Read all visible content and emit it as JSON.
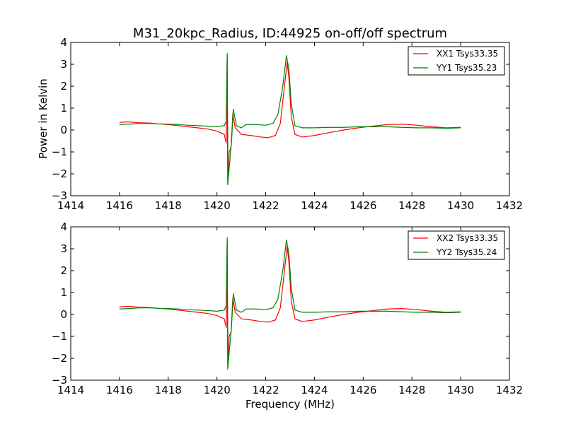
{
  "colors": {
    "xx": "#ff0000",
    "yy": "#008000"
  },
  "chart_data": [
    {
      "type": "line",
      "title": "M31_20kpc_Radius, ID:44925 on-off/off spectrum",
      "xlabel": "",
      "ylabel": "Power in Kelvin",
      "xlim": [
        1414,
        1432
      ],
      "ylim": [
        -3,
        4
      ],
      "xticks": [
        "1414",
        "1416",
        "1418",
        "1420",
        "1422",
        "1424",
        "1426",
        "1428",
        "1430",
        "1432"
      ],
      "yticks": [
        "−3",
        "−2",
        "−1",
        "0",
        "1",
        "2",
        "3",
        "4"
      ],
      "grid": false,
      "legend": "top-right",
      "series": [
        {
          "name": "XX1 Tsys33.35",
          "color": "#ff0000",
          "points": [
            [
              1416.0,
              0.35
            ],
            [
              1416.4,
              0.37
            ],
            [
              1416.8,
              0.33
            ],
            [
              1417.2,
              0.32
            ],
            [
              1417.6,
              0.28
            ],
            [
              1418.0,
              0.25
            ],
            [
              1418.4,
              0.2
            ],
            [
              1418.8,
              0.15
            ],
            [
              1419.2,
              0.1
            ],
            [
              1419.6,
              0.05
            ],
            [
              1420.0,
              -0.05
            ],
            [
              1420.3,
              -0.2
            ],
            [
              1420.38,
              -0.6
            ],
            [
              1420.42,
              3.4
            ],
            [
              1420.44,
              -2.5
            ],
            [
              1420.5,
              -1.0
            ],
            [
              1420.58,
              -0.8
            ],
            [
              1420.65,
              0.75
            ],
            [
              1420.75,
              0.1
            ],
            [
              1421.0,
              -0.2
            ],
            [
              1421.4,
              -0.25
            ],
            [
              1421.8,
              -0.32
            ],
            [
              1422.1,
              -0.35
            ],
            [
              1422.4,
              -0.25
            ],
            [
              1422.6,
              0.3
            ],
            [
              1422.75,
              1.8
            ],
            [
              1422.88,
              3.1
            ],
            [
              1422.95,
              2.4
            ],
            [
              1423.05,
              0.6
            ],
            [
              1423.2,
              -0.2
            ],
            [
              1423.5,
              -0.32
            ],
            [
              1424.0,
              -0.25
            ],
            [
              1424.6,
              -0.12
            ],
            [
              1425.2,
              0.0
            ],
            [
              1425.8,
              0.1
            ],
            [
              1426.4,
              0.18
            ],
            [
              1427.0,
              0.25
            ],
            [
              1427.6,
              0.27
            ],
            [
              1428.2,
              0.22
            ],
            [
              1428.8,
              0.15
            ],
            [
              1429.4,
              0.1
            ],
            [
              1430.0,
              0.12
            ]
          ]
        },
        {
          "name": "YY1 Tsys35.23",
          "color": "#008000",
          "points": [
            [
              1416.0,
              0.25
            ],
            [
              1416.4,
              0.27
            ],
            [
              1416.8,
              0.3
            ],
            [
              1417.2,
              0.3
            ],
            [
              1417.6,
              0.28
            ],
            [
              1418.0,
              0.27
            ],
            [
              1418.4,
              0.25
            ],
            [
              1418.8,
              0.22
            ],
            [
              1419.2,
              0.2
            ],
            [
              1419.6,
              0.18
            ],
            [
              1420.0,
              0.15
            ],
            [
              1420.3,
              0.2
            ],
            [
              1420.38,
              0.4
            ],
            [
              1420.42,
              3.5
            ],
            [
              1420.45,
              -2.4
            ],
            [
              1420.52,
              -1.5
            ],
            [
              1420.6,
              -0.5
            ],
            [
              1420.67,
              0.95
            ],
            [
              1420.8,
              0.2
            ],
            [
              1421.0,
              0.1
            ],
            [
              1421.2,
              0.25
            ],
            [
              1421.6,
              0.25
            ],
            [
              1422.0,
              0.22
            ],
            [
              1422.3,
              0.3
            ],
            [
              1422.5,
              0.7
            ],
            [
              1422.7,
              2.0
            ],
            [
              1422.85,
              3.4
            ],
            [
              1422.95,
              2.8
            ],
            [
              1423.05,
              1.2
            ],
            [
              1423.2,
              0.2
            ],
            [
              1423.5,
              0.1
            ],
            [
              1424.0,
              0.1
            ],
            [
              1424.6,
              0.12
            ],
            [
              1425.2,
              0.12
            ],
            [
              1425.8,
              0.15
            ],
            [
              1426.4,
              0.15
            ],
            [
              1427.0,
              0.15
            ],
            [
              1427.6,
              0.12
            ],
            [
              1428.2,
              0.1
            ],
            [
              1428.8,
              0.1
            ],
            [
              1429.4,
              0.08
            ],
            [
              1430.0,
              0.1
            ]
          ]
        }
      ]
    },
    {
      "type": "line",
      "title": "",
      "xlabel": "Frequency (MHz)",
      "ylabel": "",
      "xlim": [
        1414,
        1432
      ],
      "ylim": [
        -3,
        4
      ],
      "xticks": [
        "1414",
        "1416",
        "1418",
        "1420",
        "1422",
        "1424",
        "1426",
        "1428",
        "1430",
        "1432"
      ],
      "yticks": [
        "−3",
        "−2",
        "−1",
        "0",
        "1",
        "2",
        "3",
        "4"
      ],
      "grid": false,
      "legend": "top-right",
      "series": [
        {
          "name": "XX2 Tsys33.35",
          "color": "#ff0000",
          "points": [
            [
              1416.0,
              0.35
            ],
            [
              1416.4,
              0.37
            ],
            [
              1416.8,
              0.33
            ],
            [
              1417.2,
              0.32
            ],
            [
              1417.6,
              0.28
            ],
            [
              1418.0,
              0.25
            ],
            [
              1418.4,
              0.2
            ],
            [
              1418.8,
              0.15
            ],
            [
              1419.2,
              0.1
            ],
            [
              1419.6,
              0.05
            ],
            [
              1420.0,
              -0.05
            ],
            [
              1420.3,
              -0.2
            ],
            [
              1420.38,
              -0.6
            ],
            [
              1420.42,
              3.4
            ],
            [
              1420.44,
              -2.5
            ],
            [
              1420.5,
              -1.0
            ],
            [
              1420.58,
              -0.8
            ],
            [
              1420.65,
              0.75
            ],
            [
              1420.75,
              0.1
            ],
            [
              1421.0,
              -0.2
            ],
            [
              1421.4,
              -0.25
            ],
            [
              1421.8,
              -0.32
            ],
            [
              1422.1,
              -0.35
            ],
            [
              1422.4,
              -0.25
            ],
            [
              1422.6,
              0.3
            ],
            [
              1422.75,
              1.8
            ],
            [
              1422.88,
              3.1
            ],
            [
              1422.95,
              2.4
            ],
            [
              1423.05,
              0.6
            ],
            [
              1423.2,
              -0.2
            ],
            [
              1423.5,
              -0.32
            ],
            [
              1424.0,
              -0.25
            ],
            [
              1424.6,
              -0.12
            ],
            [
              1425.2,
              0.0
            ],
            [
              1425.8,
              0.1
            ],
            [
              1426.4,
              0.18
            ],
            [
              1427.0,
              0.25
            ],
            [
              1427.6,
              0.27
            ],
            [
              1428.2,
              0.22
            ],
            [
              1428.8,
              0.15
            ],
            [
              1429.4,
              0.1
            ],
            [
              1430.0,
              0.12
            ]
          ]
        },
        {
          "name": "YY2 Tsys35.24",
          "color": "#008000",
          "points": [
            [
              1416.0,
              0.25
            ],
            [
              1416.4,
              0.27
            ],
            [
              1416.8,
              0.3
            ],
            [
              1417.2,
              0.3
            ],
            [
              1417.6,
              0.28
            ],
            [
              1418.0,
              0.27
            ],
            [
              1418.4,
              0.25
            ],
            [
              1418.8,
              0.22
            ],
            [
              1419.2,
              0.2
            ],
            [
              1419.6,
              0.18
            ],
            [
              1420.0,
              0.15
            ],
            [
              1420.3,
              0.2
            ],
            [
              1420.38,
              0.4
            ],
            [
              1420.42,
              3.5
            ],
            [
              1420.45,
              -2.4
            ],
            [
              1420.52,
              -1.5
            ],
            [
              1420.6,
              -0.5
            ],
            [
              1420.67,
              0.95
            ],
            [
              1420.8,
              0.2
            ],
            [
              1421.0,
              0.1
            ],
            [
              1421.2,
              0.25
            ],
            [
              1421.6,
              0.25
            ],
            [
              1422.0,
              0.22
            ],
            [
              1422.3,
              0.3
            ],
            [
              1422.5,
              0.7
            ],
            [
              1422.7,
              2.0
            ],
            [
              1422.85,
              3.4
            ],
            [
              1422.95,
              2.8
            ],
            [
              1423.05,
              1.2
            ],
            [
              1423.2,
              0.2
            ],
            [
              1423.5,
              0.1
            ],
            [
              1424.0,
              0.1
            ],
            [
              1424.6,
              0.12
            ],
            [
              1425.2,
              0.12
            ],
            [
              1425.8,
              0.15
            ],
            [
              1426.4,
              0.15
            ],
            [
              1427.0,
              0.15
            ],
            [
              1427.6,
              0.12
            ],
            [
              1428.2,
              0.1
            ],
            [
              1428.8,
              0.1
            ],
            [
              1429.4,
              0.08
            ],
            [
              1430.0,
              0.1
            ]
          ]
        }
      ]
    }
  ]
}
